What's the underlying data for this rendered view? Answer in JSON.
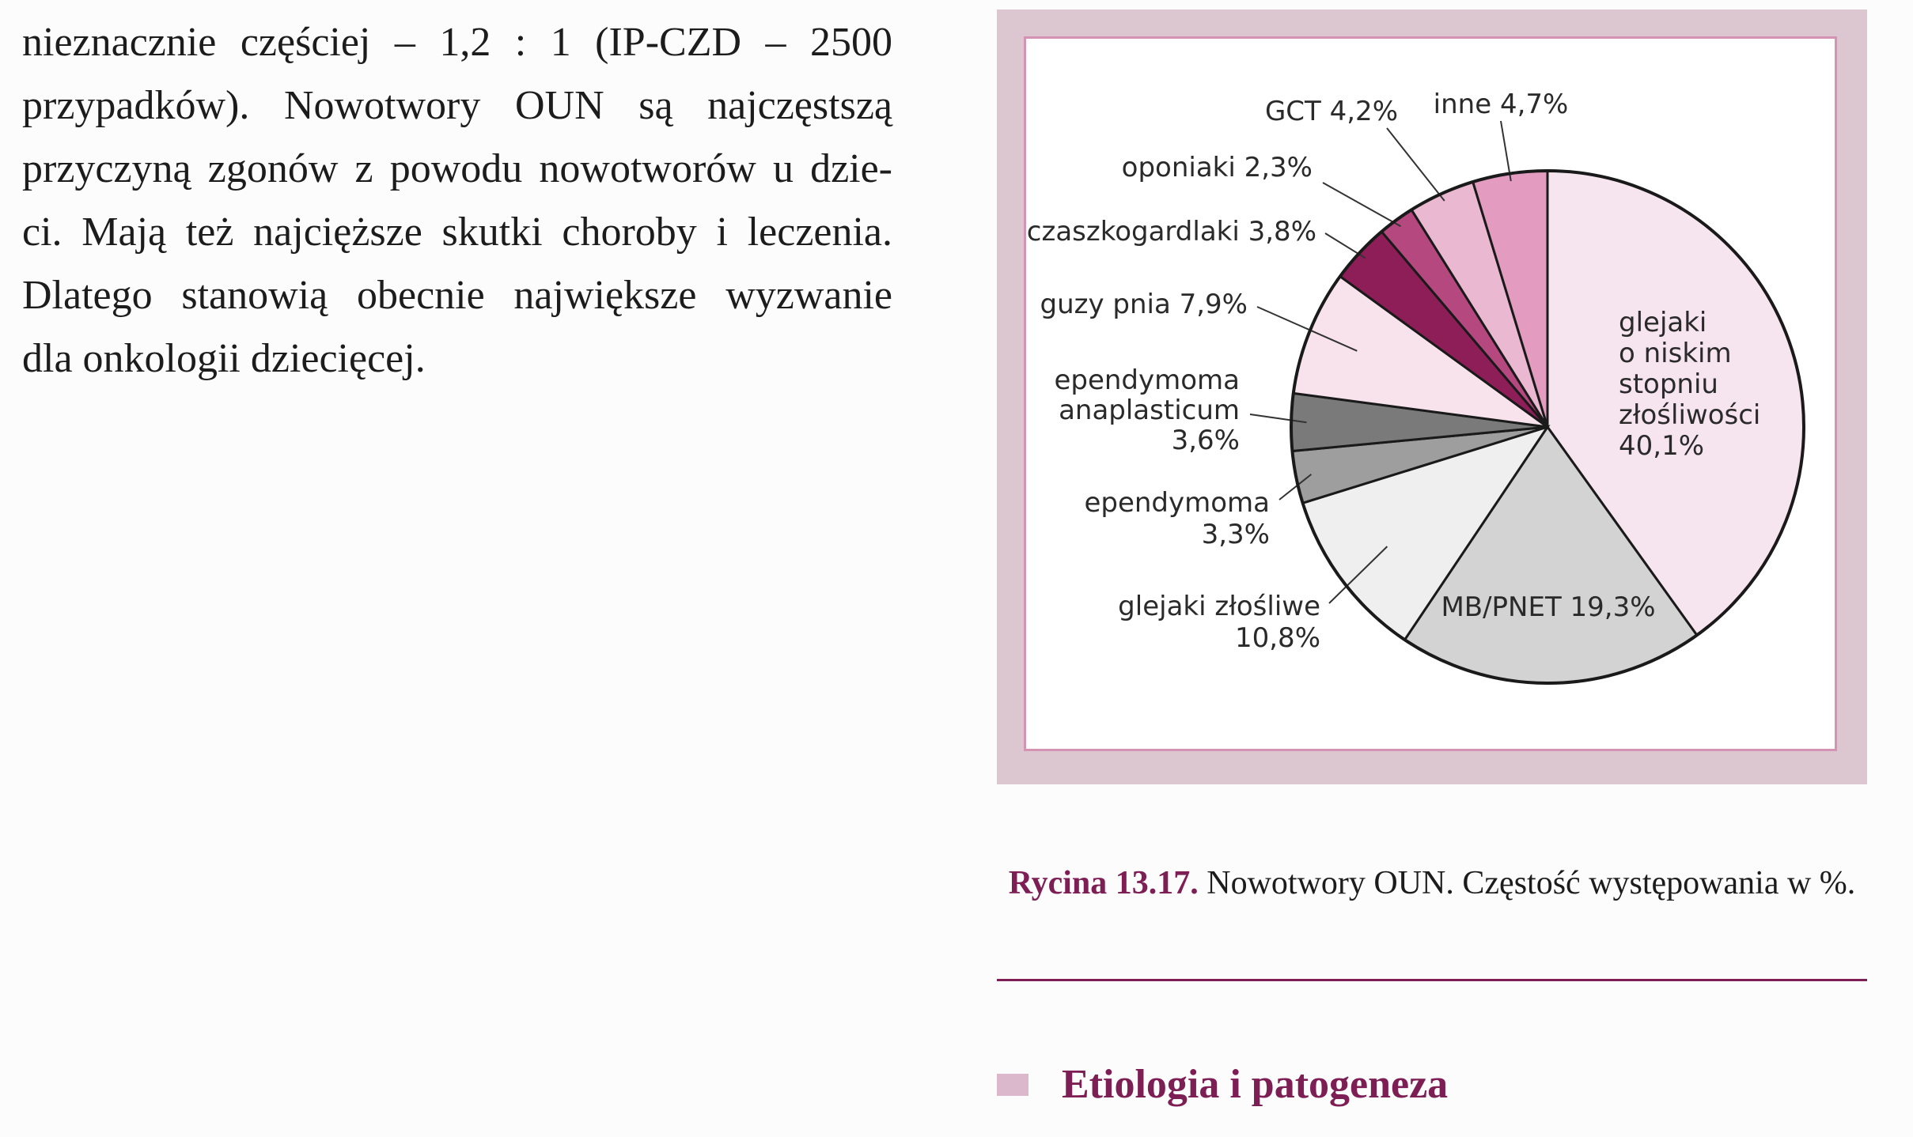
{
  "paragraph": {
    "lines": [
      "nieznacznie częściej – 1,2 : 1 (IP-CZD – 2500",
      "przypadków). Nowotwory OUN są najczęstszą",
      "przyczyną zgonów z powodu nowotworów u dzie-",
      "ci. Mają też najcięższe skutki choroby i leczenia.",
      "Dlatego stanowią obecnie największe wyzwanie",
      "dla onkologii dziecięcej."
    ]
  },
  "chart_data": {
    "type": "pie",
    "title": "",
    "series": [
      {
        "label_lines": [
          "glejaki",
          "o niskim",
          "stopniu",
          "złośliwości",
          "40,1%"
        ],
        "value": 40.1,
        "color": "#f6e5ee"
      },
      {
        "label_lines": [
          "MB/PNET 19,3%"
        ],
        "value": 19.3,
        "color": "#d3d3d3"
      },
      {
        "label_lines": [
          "glejaki złośliwe",
          "10,8%"
        ],
        "value": 10.8,
        "color": "#efefef"
      },
      {
        "label_lines": [
          "ependymoma",
          "3,3%"
        ],
        "value": 3.3,
        "color": "#9e9e9e"
      },
      {
        "label_lines": [
          "ependymoma",
          "anaplasticum",
          "3,6%"
        ],
        "value": 3.6,
        "color": "#7a7a7a"
      },
      {
        "label_lines": [
          "guzy pnia 7,9%"
        ],
        "value": 7.9,
        "color": "#f8e2ec"
      },
      {
        "label_lines": [
          "czaszkogardlaki 3,8%"
        ],
        "value": 3.8,
        "color": "#8e1e57"
      },
      {
        "label_lines": [
          "oponiaki 2,3%"
        ],
        "value": 2.3,
        "color": "#b5487e"
      },
      {
        "label_lines": [
          "GCT 4,2%"
        ],
        "value": 4.2,
        "color": "#eab8d0"
      },
      {
        "label_lines": [
          "inne 4,7%"
        ],
        "value": 4.7,
        "color": "#e39bbf"
      }
    ],
    "direction": "clockwise from top"
  },
  "caption": {
    "figure_number": "Rycina 13.17.",
    "text": " Nowotwory OUN. Częstość występowania w %."
  },
  "section": {
    "title": "Etiologia i patogeneza"
  },
  "colors": {
    "accent": "#7d1f55",
    "frame": "#dcc7d1",
    "inner_border": "#d493b2"
  }
}
